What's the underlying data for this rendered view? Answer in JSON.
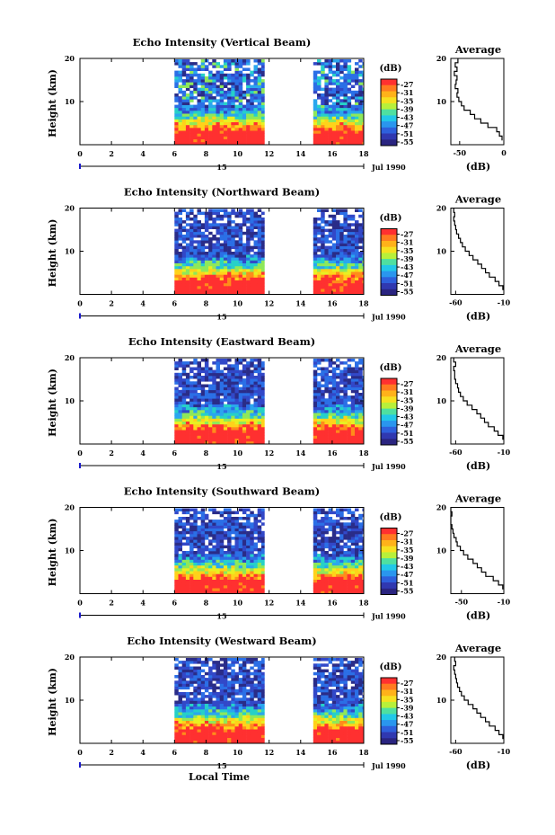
{
  "chart_data": [
    {
      "type": "heatmap",
      "title": "Echo Intensity (Vertical Beam)",
      "xlabel": "",
      "ylabel": "Height (km)",
      "x_ticks": [
        "0",
        "2",
        "4",
        "6",
        "8",
        "10",
        "12",
        "14",
        "16",
        "18"
      ],
      "y_ticks": [
        "20",
        "10"
      ],
      "xlim": [
        0,
        18
      ],
      "ylim": [
        0,
        20
      ],
      "data_segments": [
        [
          6,
          11.7
        ],
        [
          14.8,
          18
        ]
      ],
      "date_day": "15",
      "date_label": "Jul 1990",
      "colorbar": {
        "unit": "(dB)",
        "levels": [
          "-27",
          "-31",
          "-35",
          "-39",
          "-43",
          "-47",
          "-51",
          "-55"
        ]
      },
      "average_profile": {
        "title": "Average",
        "xlabel": "(dB)",
        "x_ticks": [
          "-50",
          "0"
        ],
        "xlim": [
          -60,
          0
        ],
        "y_ticks": [
          "20",
          "10"
        ],
        "height_km": [
          2,
          3,
          4,
          5,
          6,
          7,
          8,
          9,
          10,
          11,
          12,
          13,
          14,
          15,
          16,
          17,
          18,
          19,
          20
        ],
        "db": [
          -2,
          -5,
          -8,
          -18,
          -26,
          -33,
          -38,
          -45,
          -48,
          -51,
          -53,
          -52,
          -55,
          -54,
          -53,
          -56,
          -53,
          -55,
          -52
        ]
      }
    },
    {
      "type": "heatmap",
      "title": "Echo Intensity (Northward Beam)",
      "xlabel": "",
      "ylabel": "Height (km)",
      "x_ticks": [
        "0",
        "2",
        "4",
        "6",
        "8",
        "10",
        "12",
        "14",
        "16",
        "18"
      ],
      "y_ticks": [
        "20",
        "10"
      ],
      "xlim": [
        0,
        18
      ],
      "ylim": [
        0,
        20
      ],
      "data_segments": [
        [
          6,
          11.7
        ],
        [
          14.8,
          18
        ]
      ],
      "date_day": "15",
      "date_label": "Jul 1990",
      "colorbar": {
        "unit": "(dB)",
        "levels": [
          "-27",
          "-31",
          "-35",
          "-39",
          "-43",
          "-47",
          "-51",
          "-55"
        ]
      },
      "average_profile": {
        "title": "Average",
        "xlabel": "(dB)",
        "x_ticks": [
          "-60",
          "-10"
        ],
        "xlim": [
          -65,
          -10
        ],
        "y_ticks": [
          "20",
          "10"
        ],
        "height_km": [
          2,
          3,
          4,
          5,
          6,
          7,
          8,
          9,
          10,
          11,
          12,
          13,
          14,
          15,
          16,
          17,
          18,
          19,
          20
        ],
        "db": [
          -11,
          -15,
          -19,
          -25,
          -29,
          -33,
          -37,
          -42,
          -46,
          -50,
          -53,
          -55,
          -57,
          -59,
          -60,
          -61,
          -62,
          -61,
          -62
        ]
      }
    },
    {
      "type": "heatmap",
      "title": "Echo Intensity (Eastward Beam)",
      "xlabel": "",
      "ylabel": "Height (km)",
      "x_ticks": [
        "0",
        "2",
        "4",
        "6",
        "8",
        "10",
        "12",
        "14",
        "16",
        "18"
      ],
      "y_ticks": [
        "20",
        "10"
      ],
      "xlim": [
        0,
        18
      ],
      "ylim": [
        0,
        20
      ],
      "data_segments": [
        [
          6,
          11.7
        ],
        [
          14.8,
          18
        ]
      ],
      "date_day": "15",
      "date_label": "Jul 1990",
      "colorbar": {
        "unit": "(dB)",
        "levels": [
          "-27",
          "-31",
          "-35",
          "-39",
          "-43",
          "-47",
          "-51",
          "-55"
        ]
      },
      "average_profile": {
        "title": "Average",
        "xlabel": "(dB)",
        "x_ticks": [
          "-60",
          "-10"
        ],
        "xlim": [
          -65,
          -10
        ],
        "y_ticks": [
          "20",
          "10"
        ],
        "height_km": [
          2,
          3,
          4,
          5,
          6,
          7,
          8,
          9,
          10,
          11,
          12,
          13,
          14,
          15,
          16,
          17,
          18,
          19,
          20
        ],
        "db": [
          -11,
          -16,
          -20,
          -26,
          -30,
          -34,
          -38,
          -43,
          -48,
          -52,
          -55,
          -57,
          -58,
          -60,
          -61,
          -61,
          -62,
          -60,
          -62
        ]
      }
    },
    {
      "type": "heatmap",
      "title": "Echo Intensity (Southward Beam)",
      "xlabel": "",
      "ylabel": "Height (km)",
      "x_ticks": [
        "0",
        "2",
        "4",
        "6",
        "8",
        "10",
        "12",
        "14",
        "16",
        "18"
      ],
      "y_ticks": [
        "20",
        "10"
      ],
      "xlim": [
        0,
        18
      ],
      "ylim": [
        0,
        20
      ],
      "data_segments": [
        [
          6,
          11.7
        ],
        [
          14.8,
          18
        ]
      ],
      "date_day": "15",
      "date_label": "Jul 1990",
      "colorbar": {
        "unit": "(dB)",
        "levels": [
          "-27",
          "-31",
          "-35",
          "-39",
          "-43",
          "-47",
          "-51",
          "-55"
        ]
      },
      "average_profile": {
        "title": "Average",
        "xlabel": "(dB)",
        "x_ticks": [
          "-50",
          "-10"
        ],
        "xlim": [
          -60,
          -10
        ],
        "y_ticks": [
          "20",
          "10"
        ],
        "height_km": [
          2,
          3,
          4,
          5,
          6,
          7,
          8,
          9,
          10,
          11,
          12,
          13,
          14,
          15,
          16,
          17,
          18,
          19,
          20
        ],
        "db": [
          -11,
          -15,
          -20,
          -27,
          -31,
          -35,
          -39,
          -44,
          -48,
          -51,
          -54,
          -55,
          -57,
          -58,
          -59,
          -60,
          -60,
          -59,
          -60
        ]
      }
    },
    {
      "type": "heatmap",
      "title": "Echo Intensity (Westward Beam)",
      "xlabel": "Local Time",
      "ylabel": "Height (km)",
      "x_ticks": [
        "0",
        "2",
        "4",
        "6",
        "8",
        "10",
        "12",
        "14",
        "16",
        "18"
      ],
      "y_ticks": [
        "20",
        "10"
      ],
      "xlim": [
        0,
        18
      ],
      "ylim": [
        0,
        20
      ],
      "data_segments": [
        [
          6,
          11.7
        ],
        [
          14.8,
          18
        ]
      ],
      "date_day": "15",
      "date_label": "Jul 1990",
      "colorbar": {
        "unit": "(dB)",
        "levels": [
          "-27",
          "-31",
          "-35",
          "-39",
          "-43",
          "-47",
          "-51",
          "-55"
        ]
      },
      "average_profile": {
        "title": "Average",
        "xlabel": "(dB)",
        "x_ticks": [
          "-60",
          "-10"
        ],
        "xlim": [
          -65,
          -10
        ],
        "y_ticks": [
          "20",
          "10"
        ],
        "height_km": [
          2,
          3,
          4,
          5,
          6,
          7,
          8,
          9,
          10,
          11,
          12,
          13,
          14,
          15,
          16,
          17,
          18,
          19,
          20
        ],
        "db": [
          -11,
          -15,
          -19,
          -25,
          -29,
          -34,
          -38,
          -42,
          -47,
          -51,
          -54,
          -56,
          -58,
          -59,
          -60,
          -61,
          -62,
          -60,
          -61
        ]
      }
    }
  ]
}
